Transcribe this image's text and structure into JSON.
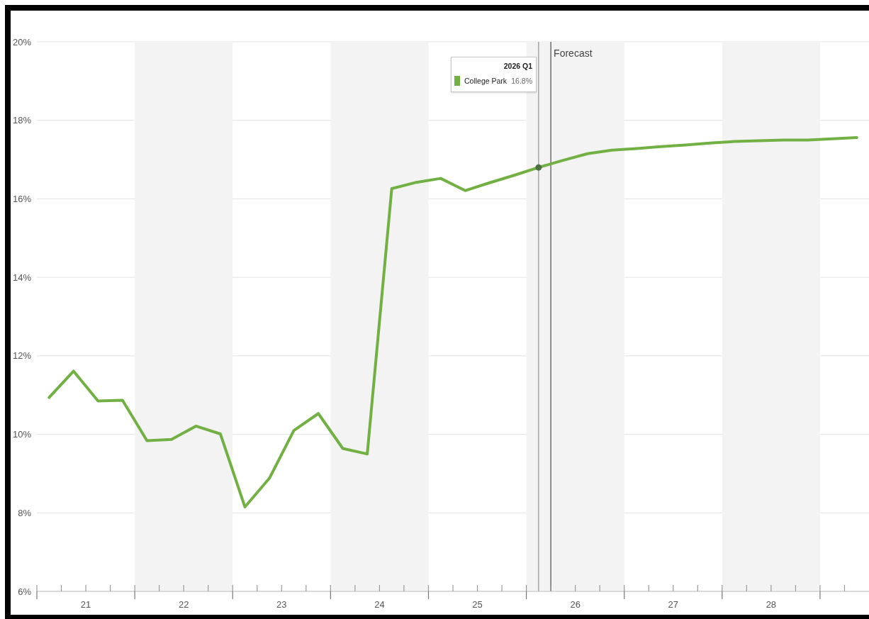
{
  "chart_data": {
    "type": "line",
    "x": [
      20.625,
      20.875,
      21.125,
      21.375,
      21.625,
      21.875,
      22.125,
      22.375,
      22.625,
      22.875,
      23.125,
      23.375,
      23.625,
      23.875,
      24.125,
      24.375,
      24.625,
      24.875,
      25.125,
      25.375,
      25.625,
      25.875,
      26.125,
      26.375,
      26.625,
      26.875,
      27.125,
      27.375,
      27.625,
      27.875,
      28.125,
      28.375,
      28.625,
      28.875
    ],
    "series": [
      {
        "name": "College Park",
        "color": "#72b043",
        "values": [
          10.94,
          11.61,
          10.85,
          10.87,
          9.84,
          9.87,
          10.21,
          10.01,
          8.15,
          8.88,
          10.1,
          10.53,
          9.64,
          9.5,
          16.26,
          16.42,
          16.52,
          16.21,
          16.41,
          16.6,
          16.8,
          16.98,
          17.15,
          17.24,
          17.28,
          17.33,
          17.37,
          17.42,
          17.46,
          17.48,
          17.5,
          17.5,
          17.53,
          17.56
        ]
      },
      {
        "type": "scatter",
        "color": "#4e6e43",
        "marker": "circle",
        "x": [
          25.625
        ],
        "values": [
          16.8
        ]
      }
    ],
    "xlim": [
      20.5,
      29
    ],
    "xticks": [
      {
        "value": 20.5,
        "label": null
      },
      {
        "value": 20.75,
        "label": null
      },
      21,
      {
        "value": 21.25,
        "label": null
      },
      {
        "value": 21.5,
        "label": null
      },
      {
        "value": 21.75,
        "label": null
      },
      22,
      {
        "value": 22.25,
        "label": null
      },
      {
        "value": 22.5,
        "label": null
      },
      {
        "value": 22.75,
        "label": null
      },
      23,
      {
        "value": 23.25,
        "label": null
      },
      {
        "value": 23.5,
        "label": null
      },
      {
        "value": 23.75,
        "label": null
      },
      24,
      {
        "value": 24.25,
        "label": null
      },
      {
        "value": 24.5,
        "label": null
      },
      {
        "value": 24.75,
        "label": null
      },
      25,
      {
        "value": 25.25,
        "label": null
      },
      {
        "value": 25.5,
        "label": null
      },
      {
        "value": 25.75,
        "label": null
      },
      26,
      {
        "value": 26.25,
        "label": null
      },
      {
        "value": 26.5,
        "label": null
      },
      {
        "value": 26.75,
        "label": null
      },
      27,
      {
        "value": 27.25,
        "label": null
      },
      {
        "value": 27.5,
        "label": null
      },
      {
        "value": 27.75,
        "label": null
      },
      28,
      {
        "value": 28.25,
        "label": null
      },
      {
        "value": 28.5,
        "label": null
      },
      {
        "value": 28.75,
        "label": null
      }
    ],
    "ylim": [
      6,
      20
    ],
    "yticks": [
      {
        "value": 6,
        "label": "6%"
      },
      {
        "value": 8,
        "label": "8%"
      },
      {
        "value": 10,
        "label": "10%"
      },
      {
        "value": 12,
        "label": "12%"
      },
      {
        "value": 14,
        "label": "14%"
      },
      {
        "value": 16,
        "label": "16%"
      },
      {
        "value": 18,
        "label": "18%"
      },
      {
        "value": 20,
        "label": "20%"
      }
    ],
    "grid": "y",
    "bands": [
      {
        "axis": "x",
        "from": 21.5,
        "to": 22.5,
        "color": "#f3f3f3"
      },
      {
        "axis": "x",
        "from": 23.5,
        "to": 24.5,
        "color": "#f3f3f3"
      },
      {
        "axis": "x",
        "from": 25.5,
        "to": 26.5,
        "color": "#f3f3f3"
      },
      {
        "axis": "x",
        "from": 27.5,
        "to": 28.5,
        "color": "#f3f3f3"
      }
    ],
    "ref_lines": [
      {
        "axis": "x",
        "value": 25.625,
        "color": "#9a9a9a"
      },
      {
        "axis": "x",
        "value": 25.75,
        "label": "Forecast",
        "color": "#5a5a5a"
      }
    ],
    "legend": "top",
    "legend_title": "2026 Q1",
    "annotations": [
      "16.8%"
    ]
  }
}
